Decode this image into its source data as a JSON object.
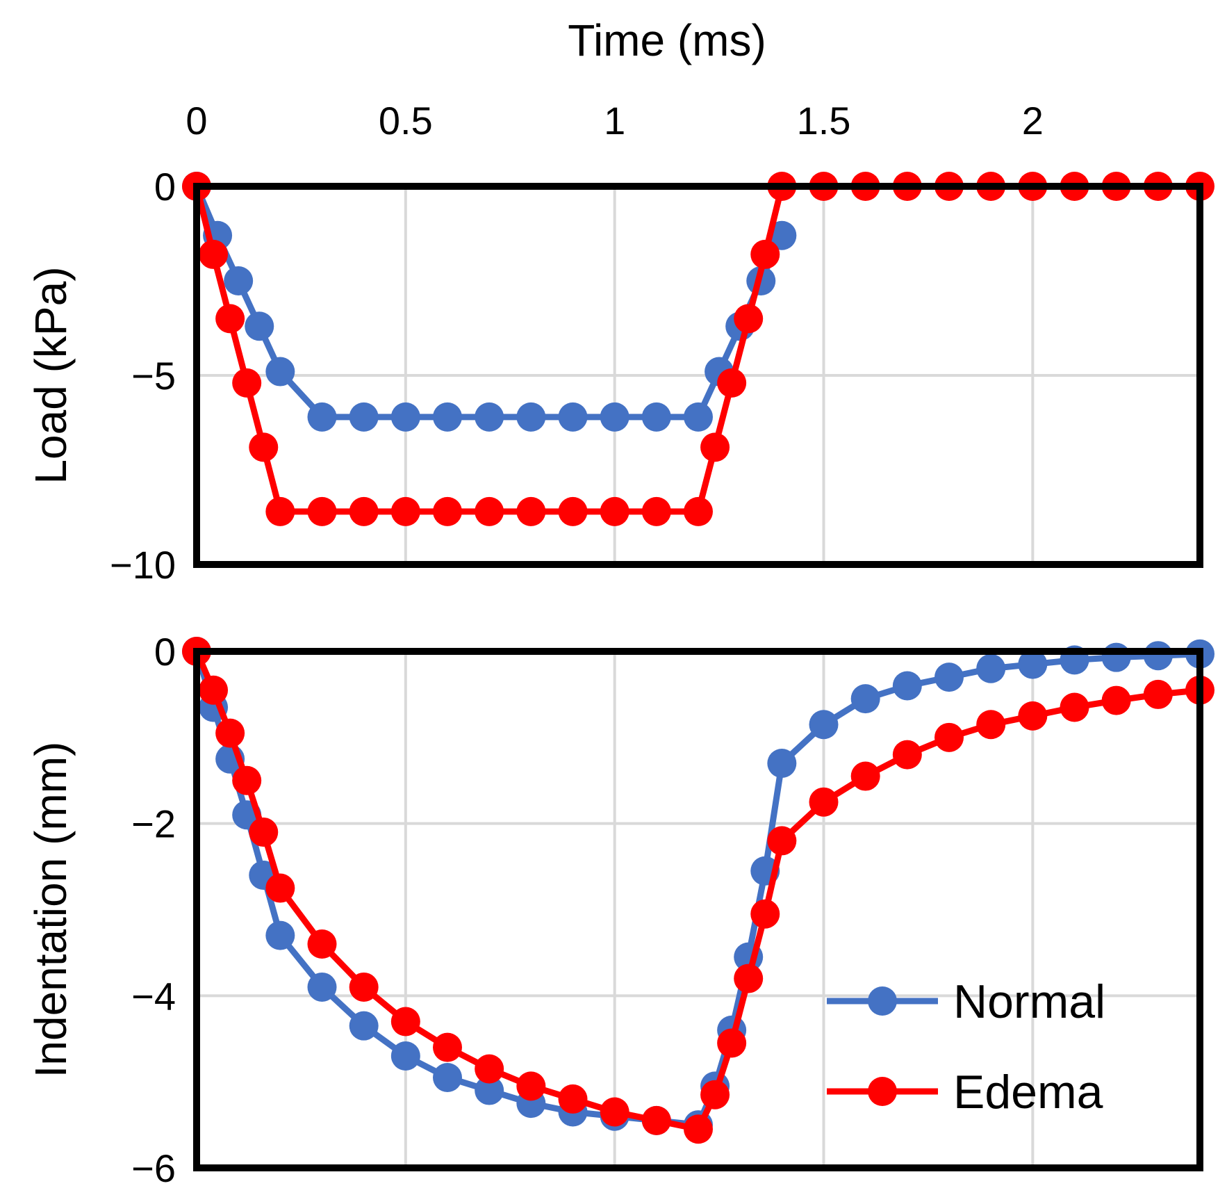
{
  "colors": {
    "normal": "#4472C4",
    "edema": "#FF0000"
  },
  "chart_data": [
    {
      "type": "line",
      "xlabel": "Time (ms)",
      "ylabel": "Load (kPa)",
      "xlim": [
        0,
        2.4
      ],
      "ylim": [
        -10,
        0
      ],
      "x_ticks": [
        "0",
        "0.5",
        "1",
        "1.5",
        "2"
      ],
      "x_tick_values": [
        0,
        0.5,
        1,
        1.5,
        2
      ],
      "y_ticks": [
        "0",
        "−5",
        "−10"
      ],
      "y_tick_values": [
        0,
        -5,
        -10
      ],
      "grid": true,
      "x_axis_position": "top",
      "series": [
        {
          "name": "Normal",
          "color": "#4472C4",
          "x": [
            0,
            0.05,
            0.1,
            0.15,
            0.2,
            0.3,
            0.4,
            0.5,
            0.6,
            0.7,
            0.8,
            0.9,
            1.0,
            1.1,
            1.2,
            1.25,
            1.3,
            1.35,
            1.4
          ],
          "y": [
            0,
            -1.3,
            -2.5,
            -3.7,
            -4.9,
            -6.1,
            -6.1,
            -6.1,
            -6.1,
            -6.1,
            -6.1,
            -6.1,
            -6.1,
            -6.1,
            -6.1,
            -4.9,
            -3.7,
            -2.5,
            -1.3
          ]
        },
        {
          "name": "Edema",
          "color": "#FF0000",
          "x": [
            0,
            0.04,
            0.08,
            0.12,
            0.16,
            0.2,
            0.3,
            0.4,
            0.5,
            0.6,
            0.7,
            0.8,
            0.9,
            1.0,
            1.1,
            1.2,
            1.24,
            1.28,
            1.32,
            1.36,
            1.4,
            1.5,
            1.6,
            1.7,
            1.8,
            1.9,
            2.0,
            2.1,
            2.2,
            2.3,
            2.4
          ],
          "y": [
            0,
            -1.8,
            -3.5,
            -5.2,
            -6.9,
            -8.6,
            -8.6,
            -8.6,
            -8.6,
            -8.6,
            -8.6,
            -8.6,
            -8.6,
            -8.6,
            -8.6,
            -8.6,
            -6.9,
            -5.2,
            -3.5,
            -1.8,
            0,
            0,
            0,
            0,
            0,
            0,
            0,
            0,
            0,
            0,
            0
          ]
        }
      ]
    },
    {
      "type": "line",
      "xlabel": "",
      "ylabel": "Indentation (mm)",
      "xlim": [
        0,
        2.4
      ],
      "ylim": [
        -6,
        0
      ],
      "y_ticks": [
        "0",
        "−2",
        "−4",
        "−6"
      ],
      "y_tick_values": [
        0,
        -2,
        -4,
        -6
      ],
      "grid": true,
      "legend": "bottom-right",
      "series": [
        {
          "name": "Normal",
          "color": "#4472C4",
          "x": [
            0,
            0.04,
            0.08,
            0.12,
            0.16,
            0.2,
            0.3,
            0.4,
            0.5,
            0.6,
            0.7,
            0.8,
            0.9,
            1.0,
            1.1,
            1.2,
            1.24,
            1.28,
            1.32,
            1.36,
            1.4,
            1.5,
            1.6,
            1.7,
            1.8,
            1.9,
            2.0,
            2.1,
            2.2,
            2.3,
            2.4
          ],
          "y": [
            0,
            -0.65,
            -1.25,
            -1.9,
            -2.6,
            -3.3,
            -3.9,
            -4.35,
            -4.7,
            -4.95,
            -5.1,
            -5.25,
            -5.35,
            -5.4,
            -5.45,
            -5.5,
            -5.05,
            -4.4,
            -3.55,
            -2.55,
            -1.3,
            -0.85,
            -0.55,
            -0.4,
            -0.3,
            -0.2,
            -0.15,
            -0.1,
            -0.07,
            -0.05,
            -0.03
          ]
        },
        {
          "name": "Edema",
          "color": "#FF0000",
          "x": [
            0,
            0.04,
            0.08,
            0.12,
            0.16,
            0.2,
            0.3,
            0.4,
            0.5,
            0.6,
            0.7,
            0.8,
            0.9,
            1.0,
            1.1,
            1.2,
            1.24,
            1.28,
            1.32,
            1.36,
            1.4,
            1.5,
            1.6,
            1.7,
            1.8,
            1.9,
            2.0,
            2.1,
            2.2,
            2.3,
            2.4
          ],
          "y": [
            0,
            -0.45,
            -0.95,
            -1.5,
            -2.1,
            -2.75,
            -3.4,
            -3.9,
            -4.3,
            -4.6,
            -4.85,
            -5.05,
            -5.2,
            -5.35,
            -5.45,
            -5.55,
            -5.15,
            -4.55,
            -3.8,
            -3.05,
            -2.2,
            -1.75,
            -1.45,
            -1.2,
            -1.0,
            -0.85,
            -0.75,
            -0.65,
            -0.57,
            -0.5,
            -0.45
          ]
        }
      ]
    }
  ]
}
